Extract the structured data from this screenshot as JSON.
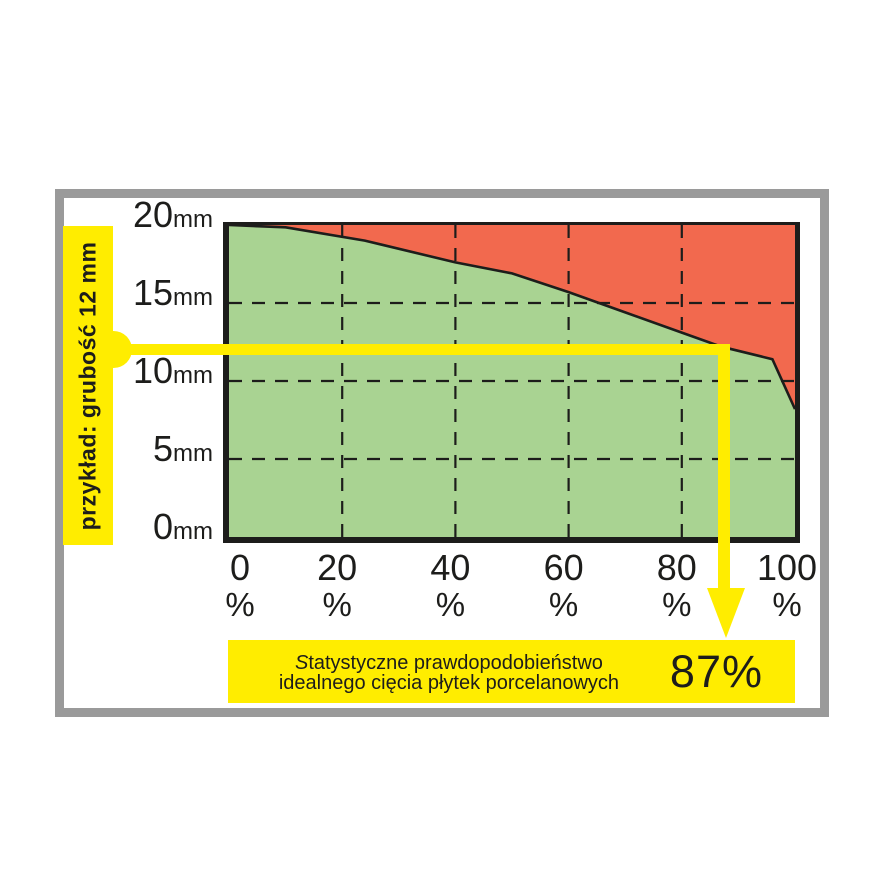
{
  "annotation": {
    "left_label": "przykład: grubość 12 mm",
    "result_line1_prefix": "S",
    "result_line1_rest": "tatystyczne prawdopodobieństwo",
    "result_line2": "idealnego cięcia płytek porcelanowych",
    "result_value": "87%"
  },
  "colors": {
    "green": "#a9d392",
    "red": "#f2694e",
    "yellow": "#ffed00",
    "gray": "#9a9a9a",
    "ink": "#1d1d1b"
  },
  "chart_data": {
    "type": "area",
    "title": "Statystyczne prawdopodobieństwo idealnego cięcia płytek porcelanowych",
    "x_unit": "%",
    "y_unit": "mm",
    "xlim": [
      0,
      100
    ],
    "ylim": [
      0,
      20
    ],
    "x_ticks_percent": [
      0,
      20,
      40,
      60,
      80,
      100
    ],
    "y_ticks_mm": [
      20,
      15,
      10,
      5,
      0
    ],
    "grid_x_percent": [
      20,
      40,
      60,
      80
    ],
    "grid_y_mm": [
      15,
      10,
      5
    ],
    "grid_style": "dashed",
    "series": [
      {
        "name": "ideal-cut-probability-boundary",
        "points_percent_mm": [
          [
            0,
            20
          ],
          [
            10,
            19.85
          ],
          [
            24,
            19.0
          ],
          [
            40,
            17.6
          ],
          [
            50,
            16.9
          ],
          [
            60,
            15.7
          ],
          [
            70,
            14.4
          ],
          [
            80,
            13.1
          ],
          [
            87,
            12.2
          ],
          [
            96,
            11.4
          ],
          [
            100,
            8.2
          ]
        ]
      }
    ],
    "regions": [
      {
        "name": "ideal-cut-zone",
        "color_key": "green",
        "position": "below-curve"
      },
      {
        "name": "non-ideal-cut-zone",
        "color_key": "red",
        "position": "above-curve"
      }
    ],
    "example_marker": {
      "thickness_mm": 12,
      "probability_percent": 87
    }
  }
}
